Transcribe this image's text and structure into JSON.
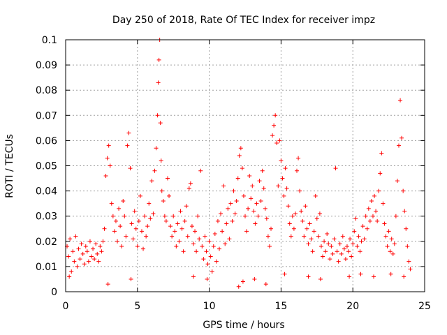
{
  "chart_data": {
    "type": "scatter",
    "title": "Day 250 of 2018, Rate Of TEC Index for receiver impz",
    "xlabel": "GPS time / hours",
    "ylabel": "ROTI / TECUs",
    "xlim": [
      0,
      25
    ],
    "ylim": [
      0,
      0.1
    ],
    "grid": true,
    "marker": "+",
    "color": "#ff0000",
    "x_ticks": [
      0,
      5,
      10,
      15,
      20,
      25
    ],
    "x_tick_labels": [
      "0",
      "5",
      "10",
      "15",
      "20",
      "25"
    ],
    "y_ticks": [
      0,
      0.01,
      0.02,
      0.03,
      0.04,
      0.05,
      0.06,
      0.07,
      0.08,
      0.09,
      0.1
    ],
    "y_tick_labels": [
      "0",
      "0.01",
      "0.02",
      "0.03",
      "0.04",
      "0.05",
      "0.06",
      "0.07",
      "0.08",
      "0.09",
      "0.1"
    ],
    "series": [
      {
        "name": "ROTI",
        "points": [
          [
            0.1,
            0.018
          ],
          [
            0.2,
            0.014
          ],
          [
            0.3,
            0.021
          ],
          [
            0.4,
            0.008
          ],
          [
            0.5,
            0.016
          ],
          [
            0.6,
            0.012
          ],
          [
            0.7,
            0.022
          ],
          [
            0.8,
            0.01
          ],
          [
            0.9,
            0.017
          ],
          [
            1.0,
            0.013
          ],
          [
            1.1,
            0.019
          ],
          [
            1.2,
            0.015
          ],
          [
            1.3,
            0.011
          ],
          [
            1.4,
            0.018
          ],
          [
            1.5,
            0.016
          ],
          [
            1.6,
            0.012
          ],
          [
            1.7,
            0.02
          ],
          [
            1.8,
            0.014
          ],
          [
            1.9,
            0.017
          ],
          [
            2.0,
            0.013
          ],
          [
            2.1,
            0.019
          ],
          [
            2.2,
            0.015
          ],
          [
            2.3,
            0.012
          ],
          [
            2.4,
            0.018
          ],
          [
            2.5,
            0.016
          ],
          [
            2.6,
            0.02
          ],
          [
            2.7,
            0.025
          ],
          [
            2.8,
            0.046
          ],
          [
            2.9,
            0.053
          ],
          [
            3.0,
            0.058
          ],
          [
            3.1,
            0.05
          ],
          [
            3.2,
            0.035
          ],
          [
            3.3,
            0.03
          ],
          [
            3.4,
            0.024
          ],
          [
            3.5,
            0.028
          ],
          [
            3.6,
            0.02
          ],
          [
            3.7,
            0.033
          ],
          [
            3.8,
            0.026
          ],
          [
            3.9,
            0.018
          ],
          [
            4.0,
            0.036
          ],
          [
            4.1,
            0.03
          ],
          [
            4.2,
            0.022
          ],
          [
            4.3,
            0.058
          ],
          [
            4.4,
            0.063
          ],
          [
            4.5,
            0.049
          ],
          [
            4.6,
            0.027
          ],
          [
            4.7,
            0.021
          ],
          [
            4.8,
            0.032
          ],
          [
            4.9,
            0.025
          ],
          [
            5.0,
            0.018
          ],
          [
            5.1,
            0.028
          ],
          [
            5.2,
            0.038
          ],
          [
            5.3,
            0.024
          ],
          [
            5.4,
            0.017
          ],
          [
            5.5,
            0.03
          ],
          [
            5.6,
            0.022
          ],
          [
            5.7,
            0.026
          ],
          [
            5.8,
            0.035
          ],
          [
            5.9,
            0.029
          ],
          [
            6.0,
            0.044
          ],
          [
            6.1,
            0.031
          ],
          [
            6.2,
            0.048
          ],
          [
            6.3,
            0.057
          ],
          [
            6.4,
            0.07
          ],
          [
            6.45,
            0.083
          ],
          [
            6.5,
            0.092
          ],
          [
            6.55,
            0.1
          ],
          [
            6.6,
            0.067
          ],
          [
            6.65,
            0.052
          ],
          [
            6.7,
            0.04
          ],
          [
            6.8,
            0.036
          ],
          [
            6.9,
            0.03
          ],
          [
            7.0,
            0.028
          ],
          [
            7.1,
            0.045
          ],
          [
            7.2,
            0.038
          ],
          [
            7.3,
            0.026
          ],
          [
            7.4,
            0.022
          ],
          [
            7.5,
            0.03
          ],
          [
            7.6,
            0.024
          ],
          [
            7.7,
            0.018
          ],
          [
            7.8,
            0.027
          ],
          [
            7.9,
            0.02
          ],
          [
            8.0,
            0.032
          ],
          [
            8.1,
            0.025
          ],
          [
            8.2,
            0.016
          ],
          [
            8.3,
            0.028
          ],
          [
            8.4,
            0.034
          ],
          [
            8.5,
            0.022
          ],
          [
            8.6,
            0.041
          ],
          [
            8.7,
            0.043
          ],
          [
            8.8,
            0.026
          ],
          [
            8.9,
            0.019
          ],
          [
            9.0,
            0.024
          ],
          [
            9.1,
            0.016
          ],
          [
            9.2,
            0.03
          ],
          [
            9.3,
            0.021
          ],
          [
            9.4,
            0.048
          ],
          [
            9.5,
            0.018
          ],
          [
            9.6,
            0.013
          ],
          [
            9.7,
            0.022
          ],
          [
            9.8,
            0.016
          ],
          [
            9.9,
            0.011
          ],
          [
            10.0,
            0.02
          ],
          [
            10.1,
            0.014
          ],
          [
            10.2,
            0.008
          ],
          [
            10.3,
            0.018
          ],
          [
            10.4,
            0.023
          ],
          [
            10.5,
            0.012
          ],
          [
            10.6,
            0.028
          ],
          [
            10.7,
            0.017
          ],
          [
            10.8,
            0.031
          ],
          [
            10.9,
            0.024
          ],
          [
            11.0,
            0.042
          ],
          [
            11.1,
            0.019
          ],
          [
            11.2,
            0.027
          ],
          [
            11.3,
            0.033
          ],
          [
            11.4,
            0.021
          ],
          [
            11.5,
            0.035
          ],
          [
            11.6,
            0.028
          ],
          [
            11.7,
            0.04
          ],
          [
            11.8,
            0.031
          ],
          [
            11.9,
            0.036
          ],
          [
            12.0,
            0.045
          ],
          [
            12.1,
            0.054
          ],
          [
            12.2,
            0.057
          ],
          [
            12.3,
            0.049
          ],
          [
            12.4,
            0.038
          ],
          [
            12.5,
            0.03
          ],
          [
            12.6,
            0.024
          ],
          [
            12.7,
            0.033
          ],
          [
            12.8,
            0.046
          ],
          [
            12.9,
            0.037
          ],
          [
            13.0,
            0.042
          ],
          [
            13.1,
            0.032
          ],
          [
            13.2,
            0.027
          ],
          [
            13.3,
            0.035
          ],
          [
            13.4,
            0.03
          ],
          [
            13.5,
            0.044
          ],
          [
            13.6,
            0.036
          ],
          [
            13.7,
            0.048
          ],
          [
            13.8,
            0.041
          ],
          [
            13.9,
            0.033
          ],
          [
            14.0,
            0.029
          ],
          [
            14.1,
            0.022
          ],
          [
            14.2,
            0.018
          ],
          [
            14.3,
            0.025
          ],
          [
            14.4,
            0.062
          ],
          [
            14.5,
            0.066
          ],
          [
            14.6,
            0.07
          ],
          [
            14.7,
            0.059
          ],
          [
            14.8,
            0.042
          ],
          [
            14.9,
            0.06
          ],
          [
            15.0,
            0.052
          ],
          [
            15.1,
            0.045
          ],
          [
            15.2,
            0.038
          ],
          [
            15.3,
            0.049
          ],
          [
            15.4,
            0.041
          ],
          [
            15.5,
            0.034
          ],
          [
            15.6,
            0.027
          ],
          [
            15.7,
            0.022
          ],
          [
            15.8,
            0.03
          ],
          [
            15.9,
            0.025
          ],
          [
            16.0,
            0.031
          ],
          [
            16.1,
            0.048
          ],
          [
            16.2,
            0.053
          ],
          [
            16.3,
            0.04
          ],
          [
            16.4,
            0.032
          ],
          [
            16.5,
            0.028
          ],
          [
            16.6,
            0.022
          ],
          [
            16.7,
            0.034
          ],
          [
            16.8,
            0.025
          ],
          [
            16.9,
            0.019
          ],
          [
            17.0,
            0.027
          ],
          [
            17.1,
            0.021
          ],
          [
            17.2,
            0.016
          ],
          [
            17.3,
            0.024
          ],
          [
            17.4,
            0.038
          ],
          [
            17.5,
            0.029
          ],
          [
            17.6,
            0.022
          ],
          [
            17.7,
            0.031
          ],
          [
            17.8,
            0.018
          ],
          [
            17.9,
            0.014
          ],
          [
            18.0,
            0.02
          ],
          [
            18.1,
            0.016
          ],
          [
            18.2,
            0.023
          ],
          [
            18.3,
            0.019
          ],
          [
            18.4,
            0.013
          ],
          [
            18.5,
            0.018
          ],
          [
            18.6,
            0.015
          ],
          [
            18.7,
            0.021
          ],
          [
            18.8,
            0.049
          ],
          [
            18.9,
            0.016
          ],
          [
            19.0,
            0.012
          ],
          [
            19.1,
            0.019
          ],
          [
            19.2,
            0.015
          ],
          [
            19.3,
            0.022
          ],
          [
            19.4,
            0.017
          ],
          [
            19.5,
            0.013
          ],
          [
            19.6,
            0.018
          ],
          [
            19.7,
            0.016
          ],
          [
            19.8,
            0.021
          ],
          [
            19.9,
            0.014
          ],
          [
            20.0,
            0.019
          ],
          [
            20.1,
            0.024
          ],
          [
            20.2,
            0.029
          ],
          [
            20.3,
            0.018
          ],
          [
            20.4,
            0.022
          ],
          [
            20.5,
            0.016
          ],
          [
            20.6,
            0.02
          ],
          [
            20.7,
            0.026
          ],
          [
            20.8,
            0.021
          ],
          [
            20.9,
            0.03
          ],
          [
            21.0,
            0.025
          ],
          [
            21.1,
            0.033
          ],
          [
            21.2,
            0.028
          ],
          [
            21.3,
            0.036
          ],
          [
            21.4,
            0.03
          ],
          [
            21.5,
            0.038
          ],
          [
            21.6,
            0.032
          ],
          [
            21.7,
            0.028
          ],
          [
            21.8,
            0.04
          ],
          [
            21.9,
            0.047
          ],
          [
            22.0,
            0.055
          ],
          [
            22.1,
            0.035
          ],
          [
            22.2,
            0.027
          ],
          [
            22.3,
            0.022
          ],
          [
            22.4,
            0.018
          ],
          [
            22.5,
            0.024
          ],
          [
            22.6,
            0.016
          ],
          [
            22.7,
            0.021
          ],
          [
            22.8,
            0.015
          ],
          [
            22.9,
            0.019
          ],
          [
            23.0,
            0.03
          ],
          [
            23.1,
            0.044
          ],
          [
            23.2,
            0.058
          ],
          [
            23.3,
            0.076
          ],
          [
            23.4,
            0.061
          ],
          [
            23.5,
            0.04
          ],
          [
            23.6,
            0.032
          ],
          [
            23.7,
            0.025
          ],
          [
            23.8,
            0.018
          ],
          [
            23.9,
            0.012
          ],
          [
            24.0,
            0.009
          ],
          [
            0.25,
            0.006
          ],
          [
            2.95,
            0.003
          ],
          [
            4.55,
            0.005
          ],
          [
            8.9,
            0.006
          ],
          [
            9.85,
            0.005
          ],
          [
            12.05,
            0.002
          ],
          [
            13.15,
            0.005
          ],
          [
            13.95,
            0.003
          ],
          [
            16.9,
            0.006
          ],
          [
            17.75,
            0.005
          ],
          [
            19.75,
            0.006
          ],
          [
            20.55,
            0.007
          ],
          [
            21.45,
            0.006
          ],
          [
            22.65,
            0.007
          ],
          [
            23.55,
            0.006
          ],
          [
            12.35,
            0.004
          ],
          [
            15.25,
            0.007
          ]
        ]
      }
    ]
  }
}
